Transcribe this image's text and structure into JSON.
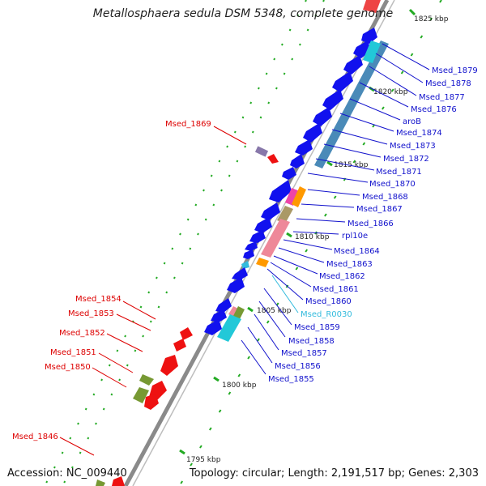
{
  "title": "Metallosphaera sedula DSM 5348, complete genome",
  "footer": {
    "accession": "Accession: NC_009440",
    "summary": "Topology: circular; Length: 2,191,517 bp; Genes: 2,303"
  },
  "colors": {
    "backbone": "#8a8a8a",
    "gene_forward": "#ee1111",
    "gene_reverse": "#1111ee",
    "label_forward": "#dd0000",
    "label_reverse": "#1111cc",
    "label_rna": "#33bbdd",
    "dot_green": "#22aa22",
    "orf_teal": "#4a8ab8",
    "orf_cyan": "#22c8d8",
    "orf_pink": "#ee8899",
    "orf_olive": "#aa9966",
    "orf_orange": "#ff9900",
    "orf_green": "#779933",
    "orf_magenta": "#ee44aa"
  },
  "scale_labels": [
    "1825 kbp",
    "1820 kbp",
    "1815 kbp",
    "1810 kbp",
    "1805 kbp",
    "1800 kbp",
    "1795 kbp"
  ],
  "labels_right": [
    "Msed_1879",
    "Msed_1878",
    "Msed_1877",
    "Msed_1876",
    "aroB",
    "Msed_1874",
    "Msed_1873",
    "Msed_1872",
    "Msed_1871",
    "Msed_1870",
    "Msed_1868",
    "Msed_1867",
    "Msed_1866",
    "rpl10e",
    "Msed_1864",
    "Msed_1863",
    "Msed_1862",
    "Msed_1861",
    "Msed_1860",
    "Msed_R0030",
    "Msed_1859",
    "Msed_1858",
    "Msed_1857",
    "Msed_1856",
    "Msed_1855"
  ],
  "labels_left": [
    "Msed_1869",
    "Msed_1854",
    "Msed_1853",
    "Msed_1852",
    "Msed_1851",
    "Msed_1850",
    "Msed_1846"
  ]
}
